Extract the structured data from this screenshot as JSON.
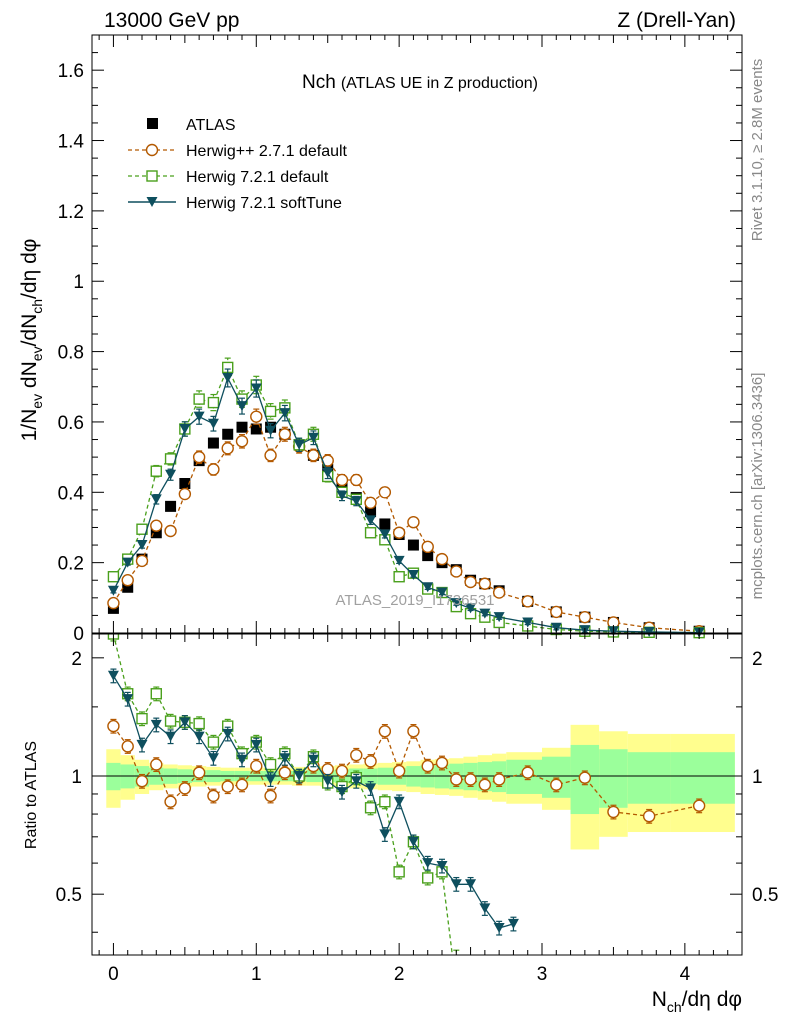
{
  "header": {
    "left": "13000 GeV pp",
    "right": "Z (Drell-Yan)"
  },
  "side": {
    "rivet": "Rivet 3.1.10, ≥ 2.8M events",
    "mcplots": "mcplots.cern.ch [arXiv:1306.3436]"
  },
  "colors": {
    "atlas": "#000000",
    "herwigpp": "#b35900",
    "herwig72": "#4aa01c",
    "softtune": "#0e4f5e",
    "band_outer": "#fffe8e",
    "band_inner": "#9bff9b"
  },
  "chart_data": [
    {
      "type": "scatter",
      "panel": "main",
      "title": "Nch",
      "subtitle": "(ATLAS UE in Z production)",
      "ylabel_main": "1/N",
      "ylabel_sub1": "ev",
      "ylabel_mid": " dN",
      "ylabel_sub2": "ev",
      "ylabel_mid2": "/dN",
      "ylabel_sub3": "ch",
      "ylabel_tail": "/dη dφ",
      "xlim": [
        -0.15,
        4.4
      ],
      "ylim": [
        0,
        1.7
      ],
      "yticks": [
        0,
        0.2,
        0.4,
        0.6,
        0.8,
        1,
        1.2,
        1.4,
        1.6
      ],
      "ytick_labels": [
        "0",
        "0.2",
        "0.4",
        "0.6",
        "0.8",
        "1",
        "1.2",
        "1.4",
        "1.6"
      ],
      "watermark": "ATLAS_2019_I1736531",
      "legend_position": "top-left",
      "series": [
        {
          "name": "ATLAS",
          "style": "data",
          "x": [
            0,
            0.1,
            0.2,
            0.3,
            0.4,
            0.5,
            0.6,
            0.7,
            0.8,
            0.9,
            1.0,
            1.1,
            1.2,
            1.3,
            1.4,
            1.5,
            1.6,
            1.7,
            1.8,
            1.9,
            2.0,
            2.1,
            2.2,
            2.3,
            2.4,
            2.5,
            2.6,
            2.7,
            2.9,
            3.1,
            3.3,
            3.5,
            3.75,
            4.1
          ],
          "y": [
            0.07,
            0.13,
            0.21,
            0.285,
            0.36,
            0.425,
            0.49,
            0.54,
            0.565,
            0.585,
            0.58,
            0.585,
            0.565,
            0.535,
            0.505,
            0.465,
            0.425,
            0.385,
            0.345,
            0.31,
            0.28,
            0.25,
            0.22,
            0.2,
            0.18,
            0.15,
            0.14,
            0.12,
            0.09,
            0.06,
            0.045,
            0.03,
            0.015,
            0.005
          ]
        },
        {
          "name": "Herwig++ 2.7.1 default",
          "style": "circle-dashed",
          "x": [
            0,
            0.1,
            0.2,
            0.3,
            0.4,
            0.5,
            0.6,
            0.7,
            0.8,
            0.9,
            1.0,
            1.1,
            1.2,
            1.3,
            1.4,
            1.5,
            1.6,
            1.7,
            1.8,
            1.9,
            2.0,
            2.1,
            2.2,
            2.3,
            2.4,
            2.5,
            2.6,
            2.7,
            2.9,
            3.1,
            3.3,
            3.5,
            3.75,
            4.1
          ],
          "y": [
            0.085,
            0.15,
            0.205,
            0.305,
            0.29,
            0.395,
            0.5,
            0.465,
            0.525,
            0.545,
            0.615,
            0.505,
            0.565,
            0.53,
            0.505,
            0.49,
            0.435,
            0.435,
            0.37,
            0.4,
            0.285,
            0.315,
            0.245,
            0.21,
            0.175,
            0.145,
            0.14,
            0.115,
            0.09,
            0.06,
            0.045,
            0.03,
            0.015,
            0.005
          ]
        },
        {
          "name": "Herwig 7.2.1 default",
          "style": "square-dashed",
          "x": [
            0,
            0.1,
            0.2,
            0.3,
            0.4,
            0.5,
            0.6,
            0.7,
            0.8,
            0.9,
            1.0,
            1.1,
            1.2,
            1.3,
            1.4,
            1.5,
            1.6,
            1.7,
            1.8,
            1.9,
            2.0,
            2.1,
            2.2,
            2.3,
            2.4,
            2.5,
            2.6,
            2.7,
            2.9,
            3.1,
            3.3,
            3.5,
            3.75,
            4.1
          ],
          "y": [
            0.16,
            0.21,
            0.295,
            0.46,
            0.495,
            0.58,
            0.665,
            0.655,
            0.755,
            0.665,
            0.705,
            0.63,
            0.64,
            0.535,
            0.565,
            0.445,
            0.4,
            0.38,
            0.285,
            0.265,
            0.16,
            0.17,
            0.125,
            0.115,
            0.075,
            0.055,
            0.045,
            0.03,
            0.02,
            0.01,
            0.005,
            0.003,
            0.002,
            0.001
          ]
        },
        {
          "name": "Herwig 7.2.1 softTune",
          "style": "triangle-solid",
          "x": [
            0,
            0.1,
            0.2,
            0.3,
            0.4,
            0.5,
            0.6,
            0.7,
            0.8,
            0.9,
            1.0,
            1.1,
            1.2,
            1.3,
            1.4,
            1.5,
            1.6,
            1.7,
            1.8,
            1.9,
            2.0,
            2.1,
            2.2,
            2.3,
            2.4,
            2.5,
            2.6,
            2.7,
            2.9,
            3.1,
            3.3,
            3.5,
            3.75,
            4.1
          ],
          "y": [
            0.12,
            0.2,
            0.25,
            0.38,
            0.45,
            0.58,
            0.615,
            0.595,
            0.725,
            0.645,
            0.695,
            0.575,
            0.625,
            0.535,
            0.555,
            0.455,
            0.39,
            0.375,
            0.32,
            0.28,
            0.205,
            0.165,
            0.13,
            0.115,
            0.085,
            0.07,
            0.055,
            0.045,
            0.03,
            0.015,
            0.008,
            0.005,
            0.003,
            0.001
          ]
        }
      ]
    },
    {
      "type": "scatter",
      "panel": "ratio",
      "ylabel": "Ratio to ATLAS",
      "xlabel_main": "N",
      "xlabel_sub": "ch",
      "xlabel_tail": "/dη dφ",
      "xlim": [
        -0.15,
        4.4
      ],
      "ylim": [
        0.35,
        2.3
      ],
      "yticks": [
        0.5,
        1,
        2
      ],
      "ytick_labels": [
        "0.5",
        "1",
        "2"
      ],
      "xticks": [
        0,
        1,
        2,
        3,
        4
      ],
      "xtick_labels": [
        "0",
        "1",
        "2",
        "3",
        "4"
      ],
      "band": {
        "x_edges": [
          -0.05,
          0.05,
          0.15,
          0.25,
          0.35,
          0.45,
          0.55,
          0.65,
          0.75,
          0.85,
          0.95,
          1.05,
          1.15,
          1.25,
          1.35,
          1.45,
          1.55,
          1.65,
          1.75,
          1.85,
          1.95,
          2.05,
          2.15,
          2.25,
          2.35,
          2.45,
          2.55,
          2.65,
          2.75,
          3.0,
          3.2,
          3.4,
          3.6,
          3.9,
          4.35
        ],
        "inner": [
          0.08,
          0.07,
          0.06,
          0.05,
          0.045,
          0.04,
          0.035,
          0.035,
          0.03,
          0.03,
          0.03,
          0.03,
          0.03,
          0.03,
          0.035,
          0.035,
          0.04,
          0.045,
          0.045,
          0.05,
          0.05,
          0.06,
          0.065,
          0.07,
          0.075,
          0.08,
          0.085,
          0.09,
          0.1,
          0.12,
          0.2,
          0.17,
          0.15,
          0.15
        ],
        "outer": [
          0.17,
          0.13,
          0.1,
          0.08,
          0.07,
          0.065,
          0.06,
          0.055,
          0.05,
          0.05,
          0.05,
          0.05,
          0.05,
          0.055,
          0.055,
          0.06,
          0.065,
          0.07,
          0.075,
          0.08,
          0.085,
          0.09,
          0.1,
          0.105,
          0.11,
          0.12,
          0.13,
          0.14,
          0.15,
          0.18,
          0.35,
          0.3,
          0.28,
          0.28
        ]
      },
      "series": [
        {
          "name": "Herwig++ 2.7.1 default",
          "style": "circle-dashed",
          "x": [
            0,
            0.1,
            0.2,
            0.3,
            0.4,
            0.5,
            0.6,
            0.7,
            0.8,
            0.9,
            1.0,
            1.1,
            1.2,
            1.3,
            1.4,
            1.5,
            1.6,
            1.7,
            1.8,
            1.9,
            2.0,
            2.1,
            2.2,
            2.3,
            2.4,
            2.5,
            2.6,
            2.7,
            2.9,
            3.1,
            3.3,
            3.5,
            3.75,
            4.1
          ],
          "y": [
            1.34,
            1.19,
            0.97,
            1.07,
            0.86,
            0.93,
            1.02,
            0.89,
            0.94,
            0.95,
            1.06,
            0.89,
            1.02,
            0.99,
            1.06,
            1.04,
            1.03,
            1.13,
            1.09,
            1.3,
            1.03,
            1.3,
            1.06,
            1.08,
            0.98,
            0.98,
            0.95,
            0.98,
            1.02,
            0.95,
            0.99,
            0.81,
            0.79,
            0.84
          ]
        },
        {
          "name": "Herwig 7.2.1 default",
          "style": "square-dashed",
          "x": [
            0,
            0.1,
            0.2,
            0.3,
            0.4,
            0.5,
            0.6,
            0.7,
            0.8,
            0.9,
            1.0,
            1.1,
            1.2,
            1.3,
            1.4,
            1.5,
            1.6,
            1.7,
            1.8,
            1.9,
            2.0,
            2.1,
            2.2,
            2.3,
            2.4
          ],
          "y": [
            2.3,
            1.62,
            1.4,
            1.62,
            1.38,
            1.37,
            1.36,
            1.22,
            1.34,
            1.14,
            1.22,
            1.07,
            1.14,
            1.0,
            1.12,
            0.96,
            0.94,
            0.99,
            0.83,
            0.86,
            0.57,
            0.68,
            0.55,
            0.57,
            0.29
          ]
        },
        {
          "name": "Herwig 7.2.1 softTune",
          "style": "triangle-solid",
          "x": [
            0,
            0.1,
            0.2,
            0.3,
            0.4,
            0.5,
            0.6,
            0.7,
            0.8,
            0.9,
            1.0,
            1.1,
            1.2,
            1.3,
            1.4,
            1.5,
            1.6,
            1.7,
            1.8,
            1.9,
            2.0,
            2.1,
            2.2,
            2.3,
            2.4,
            2.5,
            2.6,
            2.7,
            2.8
          ],
          "y": [
            1.8,
            1.57,
            1.2,
            1.35,
            1.26,
            1.37,
            1.26,
            1.11,
            1.28,
            1.1,
            1.2,
            0.98,
            1.11,
            1.0,
            1.1,
            0.97,
            0.91,
            0.97,
            0.93,
            0.71,
            0.86,
            0.68,
            0.6,
            0.59,
            0.53,
            0.53,
            0.46,
            0.41,
            0.42
          ]
        }
      ]
    }
  ]
}
